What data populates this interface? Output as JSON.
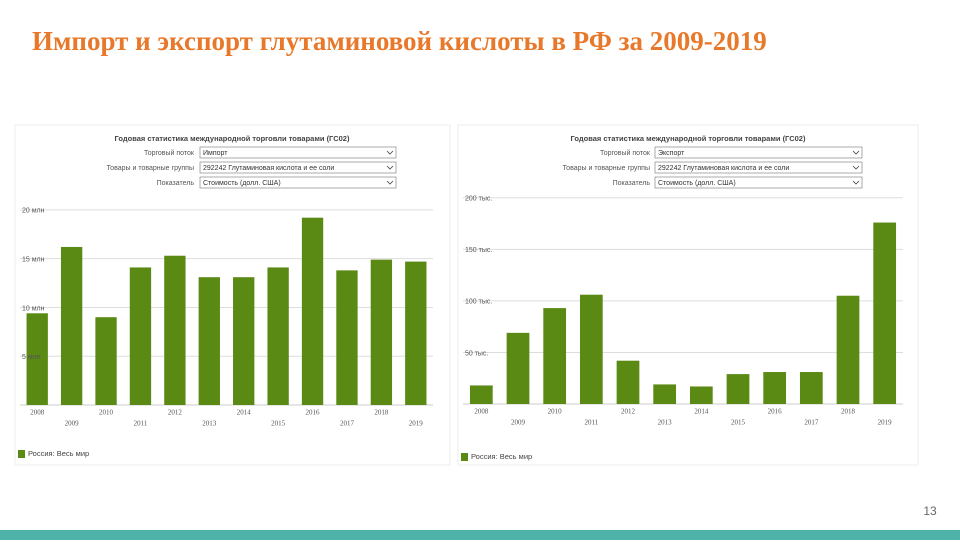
{
  "title": "Импорт и экспорт глутаминовой кислоты в РФ за 2009-2019",
  "page_number": "13",
  "chart_data": [
    {
      "type": "bar",
      "header": "Годовая статистика международной торговли товарами (ГС02)",
      "filters": [
        {
          "label": "Торговый поток",
          "value": "Импорт"
        },
        {
          "label": "Товары и товарные группы",
          "value": "292242 Глутаминовая кислота и ее соли"
        },
        {
          "label": "Показатель",
          "value": "Стоимость (долл. США)"
        }
      ],
      "categories": [
        "2008",
        "2009",
        "2010",
        "2011",
        "2012",
        "2013",
        "2014",
        "2015",
        "2016",
        "2017",
        "2018",
        "2019"
      ],
      "series": [
        {
          "name": "Россия: Весь мир",
          "color": "#5a8a14",
          "values": [
            9.4,
            16.2,
            9.0,
            14.1,
            15.3,
            13.1,
            13.1,
            14.1,
            19.2,
            13.8,
            14.9,
            14.7
          ]
        }
      ],
      "ylim": [
        0,
        20.5
      ],
      "yticks": [
        {
          "value": 5,
          "label": "5 млн"
        },
        {
          "value": 10,
          "label": "10 млн"
        },
        {
          "value": 15,
          "label": "15 млн"
        },
        {
          "value": 20,
          "label": "20 млн"
        }
      ],
      "grid": true
    },
    {
      "type": "bar",
      "header": "Годовая статистика международной торговли товарами (ГС02)",
      "filters": [
        {
          "label": "Торговый поток",
          "value": "Экспорт"
        },
        {
          "label": "Товары и товарные группы",
          "value": "292242 Глутаминовая кислота и ее соли"
        },
        {
          "label": "Показатель",
          "value": "Стоимость (долл. США)"
        }
      ],
      "categories": [
        "2008",
        "2009",
        "2010",
        "2011",
        "2012",
        "2013",
        "2014",
        "2015",
        "2016",
        "2017",
        "2018",
        "2019"
      ],
      "series": [
        {
          "name": "Россия: Весь мир",
          "color": "#5a8a14",
          "values": [
            18,
            69,
            93,
            106,
            42,
            19,
            17,
            29,
            31,
            31,
            105,
            176
          ]
        }
      ],
      "ylim": [
        0,
        193
      ],
      "yticks": [
        {
          "value": 50,
          "label": "50 тыс."
        },
        {
          "value": 100,
          "label": "100 тыс."
        },
        {
          "value": 150,
          "label": "150 тыс."
        },
        {
          "value": 200,
          "label": "200 тыс."
        }
      ],
      "grid": true
    }
  ]
}
